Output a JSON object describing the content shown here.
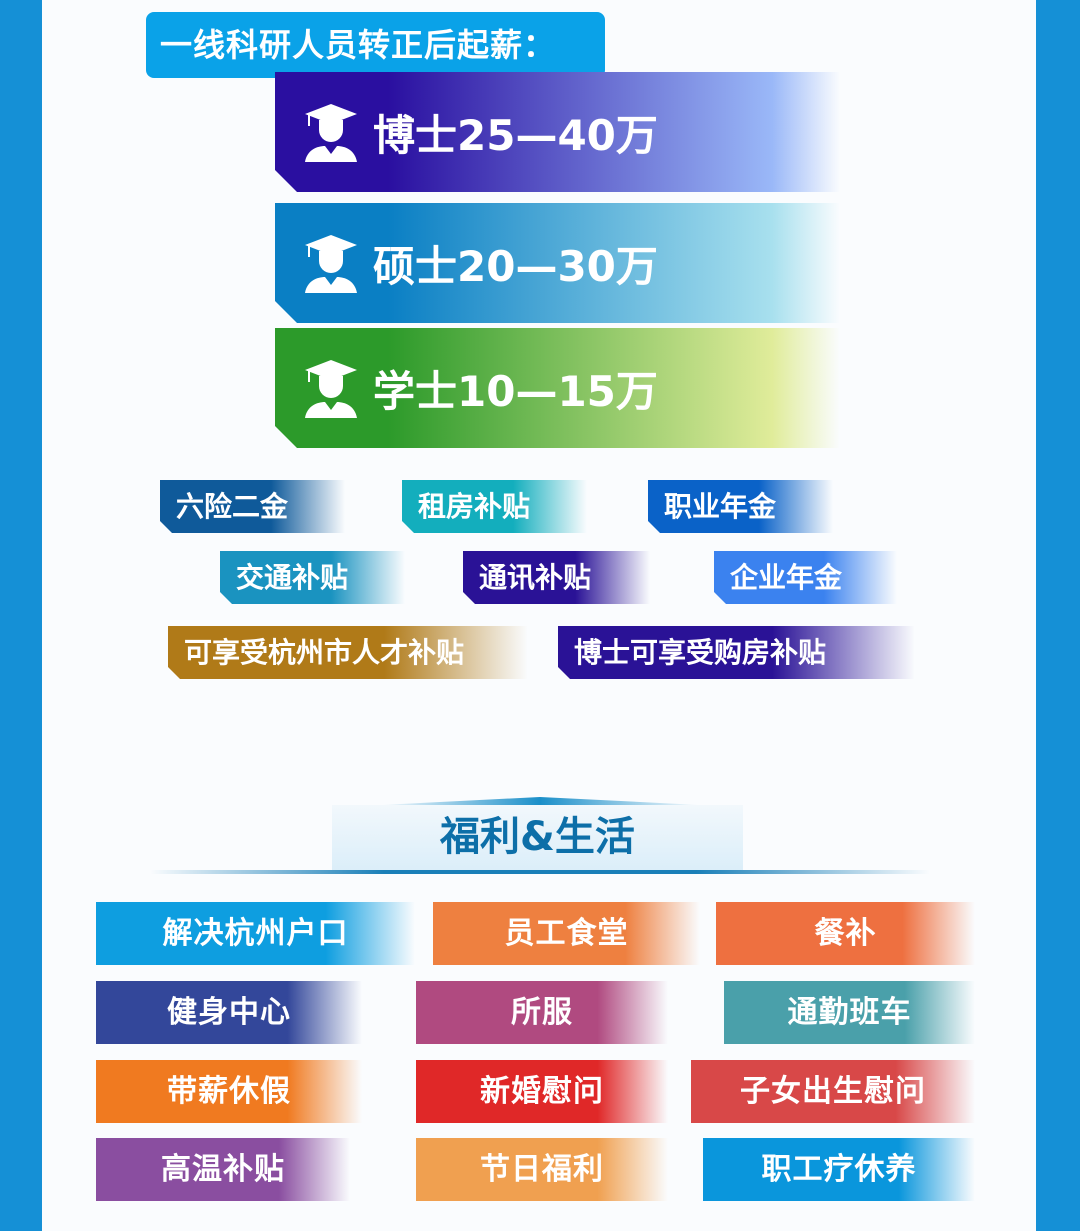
{
  "salary_header": "一线科研人员转正后起薪：",
  "salary": [
    {
      "label": "博士25—40万",
      "icon": "graduate-icon",
      "color": "#2a0fa0"
    },
    {
      "label": "硕士20—30万",
      "icon": "graduate-icon",
      "color": "#0a7fc4"
    },
    {
      "label": "学士10—15万",
      "icon": "graduate-icon",
      "color": "#2c9a2a"
    }
  ],
  "benefits": [
    {
      "label": "六险二金",
      "color": "#0f5a9a"
    },
    {
      "label": "租房补贴",
      "color": "#13aebd"
    },
    {
      "label": "职业年金",
      "color": "#0a62c8"
    },
    {
      "label": "交通补贴",
      "color": "#1a93c0"
    },
    {
      "label": "通讯补贴",
      "color": "#2a1296"
    },
    {
      "label": "企业年金",
      "color": "#3b82ef"
    },
    {
      "label": "可享受杭州市人才补贴",
      "color": "#b07a18"
    },
    {
      "label": "博士可享受购房补贴",
      "color": "#2a1296"
    }
  ],
  "welfare_title": "福利&生活",
  "welfare": [
    {
      "label": "解决杭州户口",
      "color": "#0e9ee0"
    },
    {
      "label": "员工食堂",
      "color": "#ee8040"
    },
    {
      "label": "餐补",
      "color": "#ee7040"
    },
    {
      "label": "健身中心",
      "color": "#33479a"
    },
    {
      "label": "所服",
      "color": "#b04a80"
    },
    {
      "label": "通勤班车",
      "color": "#4aa0aa"
    },
    {
      "label": "带薪休假",
      "color": "#f07a20"
    },
    {
      "label": "新婚慰问",
      "color": "#e02828"
    },
    {
      "label": "子女出生慰问",
      "color": "#d84848"
    },
    {
      "label": "高温补贴",
      "color": "#8a4ea0"
    },
    {
      "label": "节日福利",
      "color": "#f0a050"
    },
    {
      "label": "职工疗休养",
      "color": "#0a96dc"
    }
  ]
}
